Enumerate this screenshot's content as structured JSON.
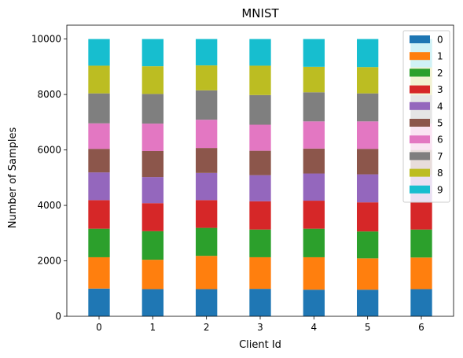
{
  "chart_data": {
    "type": "bar",
    "stacked": true,
    "title": "MNIST",
    "xlabel": "Client Id",
    "ylabel": "Number of Samples",
    "categories": [
      "0",
      "1",
      "2",
      "3",
      "4",
      "5",
      "6"
    ],
    "ylim": [
      0,
      10500
    ],
    "yticks": [
      0,
      2000,
      4000,
      6000,
      8000,
      10000
    ],
    "ytick_labels": [
      "0",
      "2000",
      "4000",
      "6000",
      "8000",
      "10000"
    ],
    "grid": false,
    "legend": "top-right",
    "series": [
      {
        "name": "0",
        "color": "#1f77b4",
        "values": [
          1000,
          980,
          980,
          990,
          960,
          960,
          980
        ]
      },
      {
        "name": "1",
        "color": "#ff7f0e",
        "values": [
          1130,
          1060,
          1200,
          1140,
          1170,
          1130,
          1140
        ]
      },
      {
        "name": "2",
        "color": "#2ca02c",
        "values": [
          1030,
          1030,
          1010,
          1000,
          1030,
          970,
          1010
        ]
      },
      {
        "name": "3",
        "color": "#d62728",
        "values": [
          1030,
          1010,
          1000,
          1020,
          1010,
          1050,
          1000
        ]
      },
      {
        "name": "4",
        "color": "#9467bd",
        "values": [
          1000,
          940,
          980,
          940,
          980,
          1010,
          970
        ]
      },
      {
        "name": "5",
        "color": "#8c564b",
        "values": [
          850,
          940,
          900,
          880,
          900,
          920,
          900
        ]
      },
      {
        "name": "6",
        "color": "#e377c2",
        "values": [
          920,
          990,
          1020,
          940,
          980,
          990,
          950
        ]
      },
      {
        "name": "7",
        "color": "#7f7f7f",
        "values": [
          1080,
          1070,
          1060,
          1070,
          1050,
          1010,
          1030
        ]
      },
      {
        "name": "8",
        "color": "#bcbd22",
        "values": [
          1000,
          1000,
          900,
          1060,
          920,
          950,
          1000
        ]
      },
      {
        "name": "9",
        "color": "#17becf",
        "values": [
          960,
          980,
          950,
          960,
          1000,
          1010,
          1020
        ]
      }
    ]
  }
}
